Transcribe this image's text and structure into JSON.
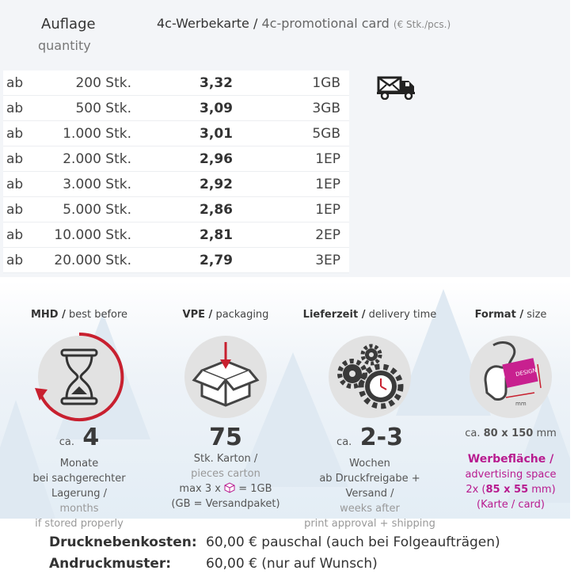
{
  "table": {
    "header_qty_de": "Auflage",
    "header_qty_en": "quantity",
    "header_product_de": "4c-Werbekarte /",
    "header_product_en": "4c-promotional card",
    "header_unit": "(€ Stk./pcs.)",
    "rows": [
      {
        "prefix": "ab",
        "qty": "200 Stk.",
        "price": "3,32",
        "shipping": "1GB"
      },
      {
        "prefix": "ab",
        "qty": "500 Stk.",
        "price": "3,09",
        "shipping": "3GB"
      },
      {
        "prefix": "ab",
        "qty": "1.000 Stk.",
        "price": "3,01",
        "shipping": "5GB"
      },
      {
        "prefix": "ab",
        "qty": "2.000 Stk.",
        "price": "2,96",
        "shipping": "1EP"
      },
      {
        "prefix": "ab",
        "qty": "3.000 Stk.",
        "price": "2,92",
        "shipping": "1EP"
      },
      {
        "prefix": "ab",
        "qty": "5.000 Stk.",
        "price": "2,86",
        "shipping": "1EP"
      },
      {
        "prefix": "ab",
        "qty": "10.000 Stk.",
        "price": "2,81",
        "shipping": "2EP"
      },
      {
        "prefix": "ab",
        "qty": "20.000 Stk.",
        "price": "2,79",
        "shipping": "3EP"
      }
    ]
  },
  "info": {
    "mhd": {
      "title_de": "MHD /",
      "title_en": "best before",
      "prefix": "ca.",
      "value": "4",
      "line1": "Monate",
      "line2": "bei sachgerechter Lagerung /",
      "line3": "months",
      "line4": "if stored properly"
    },
    "vpe": {
      "title_de": "VPE /",
      "title_en": "packaging",
      "value": "75",
      "line1": "Stk. Karton /",
      "line2": "pieces carton",
      "line3a": "max 3 x",
      "line3b": "= 1GB",
      "line4": "(GB = Versandpaket)"
    },
    "delivery": {
      "title_de": "Lieferzeit /",
      "title_en": "delivery time",
      "prefix": "ca.",
      "value": "2-3",
      "line1": "Wochen",
      "line2": "ab Druckfreigabe + Versand /",
      "line3": "weeks after",
      "line4": "print approval + shipping"
    },
    "format": {
      "title_de": "Format /",
      "title_en": "size",
      "icon_label": "DESIGN",
      "icon_unit": "mm",
      "size_prefix": "ca.",
      "size_value": "80 x 150",
      "size_unit": "mm",
      "line1": "Werbefläche /",
      "line2": "advertising space",
      "line3a": "2x (",
      "line3b": "85 x 55",
      "line3c": " mm)",
      "line4": "(Karte / card)"
    }
  },
  "footer": {
    "row1_label": "Drucknebenkosten:",
    "row1_value": "60,00 € pauschal (auch bei Folgeaufträgen)",
    "row2_label": "Andruckmuster:",
    "row2_value": "60,00 € (nur auf Wunsch)"
  },
  "colors": {
    "accent_red": "#c8202f",
    "accent_magenta": "#b81b8f",
    "icon_grey": "#e2e2e2"
  },
  "icons": [
    "envelope-truck-icon",
    "hourglass-icon",
    "box-arrow-icon",
    "gears-clock-icon",
    "hand-card-icon",
    "mini-box-icon"
  ]
}
